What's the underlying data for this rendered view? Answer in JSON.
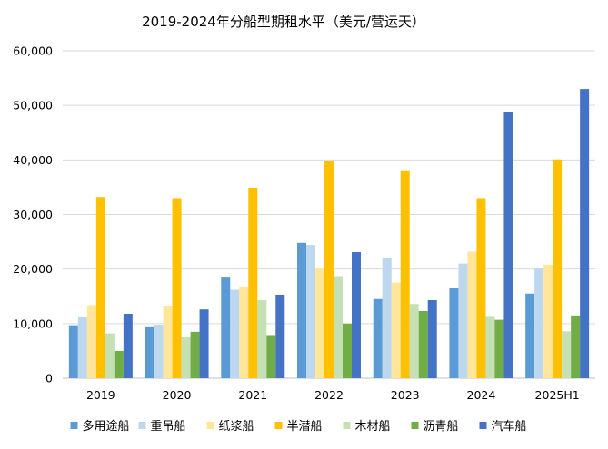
{
  "chart_data": {
    "type": "bar",
    "title": "2019-2024年分船型期租水平（美元/营运天）",
    "xlabel": "",
    "ylabel": "",
    "ylim": [
      0,
      60000
    ],
    "yticks": [
      "0",
      "10,000",
      "20,000",
      "30,000",
      "40,000",
      "50,000",
      "60,000"
    ],
    "ytick_values": [
      0,
      10000,
      20000,
      30000,
      40000,
      50000,
      60000
    ],
    "grid": true,
    "legend_position": "bottom",
    "categories": [
      "2019",
      "2020",
      "2021",
      "2022",
      "2023",
      "2024",
      "2025H1"
    ],
    "series": [
      {
        "name": "多用途船",
        "color": "#5B9BD5",
        "values": [
          9700,
          9500,
          18600,
          24800,
          14500,
          16500,
          15500
        ]
      },
      {
        "name": "重吊船",
        "color": "#BDD7EE",
        "values": [
          11200,
          9800,
          16200,
          24400,
          22100,
          21000,
          20100
        ]
      },
      {
        "name": "纸浆船",
        "color": "#FFE699",
        "values": [
          13400,
          13300,
          16800,
          20100,
          17500,
          23200,
          20800
        ]
      },
      {
        "name": "半潜船",
        "color": "#FFC000",
        "values": [
          33200,
          33000,
          34900,
          39800,
          38100,
          33000,
          40100
        ]
      },
      {
        "name": "木材船",
        "color": "#C5E0B4",
        "values": [
          8200,
          7600,
          14300,
          18700,
          13600,
          11400,
          8600
        ]
      },
      {
        "name": "沥青船",
        "color": "#70AD47",
        "values": [
          5000,
          8500,
          7900,
          10000,
          12300,
          10700,
          11500
        ]
      },
      {
        "name": "汽车船",
        "color": "#4472C4",
        "values": [
          11800,
          12600,
          15300,
          23100,
          14300,
          48700,
          53000
        ]
      }
    ]
  }
}
